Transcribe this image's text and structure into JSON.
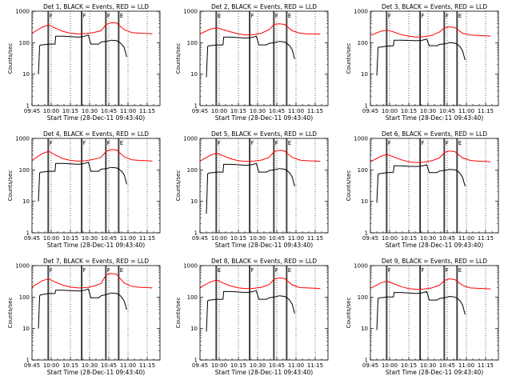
{
  "figure": {
    "xlabel": "Start Time (28-Dec-11 09:43:40)",
    "ylabel": "Counts/sec",
    "x_ticks": [
      "09:45",
      "10:00",
      "10:15",
      "10:30",
      "10:45",
      "11:00",
      "11:15"
    ],
    "y_ticks": [
      "1",
      "10",
      "100",
      "1000"
    ],
    "colors": {
      "events": "#000000",
      "lld": "#ff0000",
      "axes": "#000000"
    }
  },
  "chart_data": [
    {
      "type": "line",
      "title": "Det 1, BLACK = Events, RED = LLD",
      "x_units": "minutes after 09:45",
      "xlim": [
        0,
        100
      ],
      "ylim": [
        1,
        1000
      ],
      "y_scale": "log",
      "markers": [
        {
          "x": 13,
          "label": "F"
        },
        {
          "x": 39,
          "label": "F"
        },
        {
          "x": 58,
          "label": "F"
        },
        {
          "x": 68,
          "label": "E"
        }
      ],
      "series": [
        {
          "key": "lld",
          "x": [
            0,
            8,
            13,
            18,
            24,
            30,
            36,
            42,
            48,
            54,
            58,
            62,
            66,
            72,
            78,
            84,
            90,
            94
          ],
          "y": [
            200,
            310,
            370,
            290,
            230,
            200,
            190,
            195,
            210,
            240,
            380,
            430,
            420,
            260,
            210,
            200,
            195,
            190
          ]
        },
        {
          "key": "events",
          "x": [
            5,
            6,
            7,
            8,
            13,
            18,
            18.5,
            24,
            30,
            36,
            40,
            44,
            46,
            52,
            54,
            58,
            62,
            66,
            68,
            70,
            72,
            74
          ],
          "y": [
            10,
            80,
            85,
            85,
            90,
            90,
            160,
            160,
            155,
            150,
            155,
            175,
            90,
            90,
            105,
            110,
            120,
            115,
            105,
            90,
            70,
            35
          ]
        }
      ]
    },
    {
      "type": "line",
      "title": "Det 2, BLACK = Events, RED = LLD",
      "x_units": "minutes after 09:45",
      "xlim": [
        0,
        100
      ],
      "ylim": [
        1,
        1000
      ],
      "y_scale": "log",
      "markers": [
        {
          "x": 13,
          "label": "E"
        },
        {
          "x": 39,
          "label": "F"
        },
        {
          "x": 58,
          "label": "F"
        },
        {
          "x": 68,
          "label": "E"
        }
      ],
      "series": [
        {
          "key": "lld",
          "x": [
            0,
            8,
            13,
            18,
            24,
            30,
            36,
            42,
            48,
            54,
            58,
            62,
            66,
            72,
            78,
            84,
            90,
            94
          ],
          "y": [
            190,
            270,
            300,
            260,
            220,
            190,
            175,
            180,
            200,
            260,
            380,
            400,
            380,
            240,
            200,
            190,
            190,
            185
          ]
        },
        {
          "key": "events",
          "x": [
            5,
            6,
            7,
            8,
            13,
            18,
            18.5,
            24,
            30,
            36,
            40,
            44,
            46,
            52,
            54,
            58,
            62,
            66,
            68,
            70,
            72,
            74
          ],
          "y": [
            8,
            75,
            80,
            80,
            85,
            85,
            150,
            150,
            145,
            140,
            145,
            160,
            85,
            85,
            95,
            100,
            110,
            105,
            95,
            80,
            60,
            30
          ]
        }
      ]
    },
    {
      "type": "line",
      "title": "Det 3, BLACK = Events, RED = LLD",
      "x_units": "minutes after 09:45",
      "xlim": [
        0,
        100
      ],
      "ylim": [
        1,
        1000
      ],
      "y_scale": "log",
      "markers": [
        {
          "x": 13,
          "label": "F"
        },
        {
          "x": 39,
          "label": "F"
        },
        {
          "x": 58,
          "label": "F"
        },
        {
          "x": 68,
          "label": "E"
        }
      ],
      "series": [
        {
          "key": "lld",
          "x": [
            0,
            8,
            13,
            18,
            24,
            30,
            36,
            42,
            48,
            54,
            58,
            62,
            66,
            72,
            78,
            84,
            90,
            94
          ],
          "y": [
            170,
            230,
            250,
            220,
            180,
            160,
            150,
            155,
            170,
            220,
            300,
            320,
            300,
            200,
            175,
            170,
            165,
            160
          ]
        },
        {
          "key": "events",
          "x": [
            5,
            6,
            7,
            8,
            13,
            18,
            18.5,
            24,
            30,
            36,
            40,
            44,
            46,
            52,
            54,
            58,
            62,
            66,
            68,
            70,
            72,
            74
          ],
          "y": [
            9,
            70,
            72,
            72,
            78,
            80,
            120,
            120,
            118,
            115,
            118,
            130,
            80,
            80,
            88,
            92,
            100,
            96,
            88,
            75,
            55,
            28
          ]
        }
      ]
    },
    {
      "type": "line",
      "title": "Det 4, BLACK = Events, RED = LLD",
      "x_units": "minutes after 09:45",
      "xlim": [
        0,
        100
      ],
      "ylim": [
        1,
        1000
      ],
      "y_scale": "log",
      "markers": [
        {
          "x": 13,
          "label": "F"
        },
        {
          "x": 39,
          "label": "F"
        },
        {
          "x": 58,
          "label": "F"
        },
        {
          "x": 68,
          "label": "E"
        }
      ],
      "series": [
        {
          "key": "lld",
          "x": [
            0,
            8,
            13,
            18,
            24,
            30,
            36,
            42,
            48,
            54,
            58,
            62,
            66,
            72,
            78,
            84,
            90,
            94
          ],
          "y": [
            200,
            330,
            390,
            300,
            230,
            200,
            190,
            195,
            215,
            250,
            390,
            440,
            430,
            260,
            210,
            200,
            195,
            190
          ]
        },
        {
          "key": "events",
          "x": [
            5,
            6,
            7,
            8,
            13,
            18,
            18.5,
            24,
            30,
            36,
            40,
            44,
            46,
            52,
            54,
            58,
            62,
            66,
            68,
            70,
            72,
            74
          ],
          "y": [
            10,
            80,
            85,
            85,
            90,
            90,
            160,
            160,
            155,
            150,
            155,
            175,
            90,
            90,
            105,
            110,
            120,
            115,
            105,
            90,
            70,
            35
          ]
        }
      ]
    },
    {
      "type": "line",
      "title": "Det 5, BLACK = Events, RED = LLD",
      "x_units": "minutes after 09:45",
      "xlim": [
        0,
        100
      ],
      "ylim": [
        1,
        1000
      ],
      "y_scale": "log",
      "markers": [
        {
          "x": 13,
          "label": "F"
        },
        {
          "x": 39,
          "label": "F"
        },
        {
          "x": 58,
          "label": "F"
        },
        {
          "x": 68,
          "label": "E"
        }
      ],
      "series": [
        {
          "key": "lld",
          "x": [
            0,
            8,
            13,
            18,
            24,
            30,
            36,
            42,
            48,
            54,
            58,
            62,
            66,
            72,
            78,
            84,
            90,
            94
          ],
          "y": [
            190,
            290,
            340,
            280,
            225,
            195,
            185,
            190,
            205,
            250,
            380,
            420,
            400,
            250,
            205,
            195,
            190,
            185
          ]
        },
        {
          "key": "events",
          "x": [
            5,
            6,
            7,
            8,
            13,
            18,
            18.5,
            24,
            30,
            36,
            40,
            44,
            46,
            52,
            54,
            58,
            62,
            66,
            68,
            70,
            72,
            74
          ],
          "y": [
            4,
            75,
            80,
            80,
            85,
            85,
            150,
            150,
            145,
            140,
            145,
            160,
            85,
            85,
            95,
            100,
            110,
            105,
            95,
            80,
            60,
            30
          ]
        }
      ]
    },
    {
      "type": "line",
      "title": "Det 6, BLACK = Events, RED = LLD",
      "x_units": "minutes after 09:45",
      "xlim": [
        0,
        100
      ],
      "ylim": [
        1,
        1000
      ],
      "y_scale": "log",
      "markers": [
        {
          "x": 13,
          "label": "F"
        },
        {
          "x": 39,
          "label": "F"
        },
        {
          "x": 58,
          "label": "F"
        },
        {
          "x": 68,
          "label": "E"
        }
      ],
      "series": [
        {
          "key": "lld",
          "x": [
            0,
            8,
            13,
            18,
            24,
            30,
            36,
            42,
            48,
            54,
            58,
            62,
            66,
            72,
            78,
            84,
            90,
            94
          ],
          "y": [
            180,
            270,
            310,
            260,
            210,
            180,
            170,
            175,
            195,
            240,
            360,
            400,
            380,
            240,
            200,
            190,
            185,
            180
          ]
        },
        {
          "key": "events",
          "x": [
            5,
            6,
            7,
            8,
            13,
            18,
            18.5,
            24,
            30,
            36,
            40,
            44,
            46,
            52,
            54,
            58,
            62,
            66,
            68,
            70,
            72,
            74
          ],
          "y": [
            9,
            72,
            76,
            76,
            82,
            84,
            135,
            135,
            130,
            128,
            132,
            145,
            82,
            82,
            92,
            96,
            104,
            100,
            92,
            78,
            58,
            30
          ]
        }
      ]
    },
    {
      "type": "line",
      "title": "Det 7, BLACK = Events, RED = LLD",
      "x_units": "minutes after 09:45",
      "xlim": [
        0,
        100
      ],
      "ylim": [
        1,
        1000
      ],
      "y_scale": "log",
      "markers": [
        {
          "x": 13,
          "label": "F"
        },
        {
          "x": 39,
          "label": "F"
        },
        {
          "x": 58,
          "label": "F"
        },
        {
          "x": 68,
          "label": "E"
        }
      ],
      "series": [
        {
          "key": "lld",
          "x": [
            0,
            8,
            13,
            18,
            24,
            30,
            36,
            42,
            48,
            54,
            58,
            62,
            66,
            72,
            78,
            84,
            90,
            94
          ],
          "y": [
            210,
            330,
            380,
            300,
            240,
            210,
            195,
            200,
            220,
            270,
            520,
            560,
            530,
            280,
            220,
            205,
            200,
            195
          ]
        },
        {
          "key": "events",
          "x": [
            5,
            6,
            7,
            8,
            13,
            18,
            18.5,
            24,
            30,
            36,
            40,
            44,
            46,
            52,
            54,
            58,
            62,
            66,
            68,
            70,
            72,
            74
          ],
          "y": [
            10,
            110,
            120,
            120,
            130,
            130,
            165,
            165,
            160,
            155,
            160,
            180,
            95,
            95,
            110,
            120,
            135,
            130,
            120,
            100,
            75,
            40
          ]
        }
      ]
    },
    {
      "type": "line",
      "title": "Det 8, BLACK = Events, RED = LLD",
      "x_units": "minutes after 09:45",
      "xlim": [
        0,
        100
      ],
      "ylim": [
        1,
        1000
      ],
      "y_scale": "log",
      "markers": [
        {
          "x": 13,
          "label": "E"
        },
        {
          "x": 39,
          "label": "F"
        },
        {
          "x": 58,
          "label": "F"
        },
        {
          "x": 68,
          "label": "E"
        }
      ],
      "series": [
        {
          "key": "lld",
          "x": [
            0,
            8,
            13,
            18,
            24,
            30,
            36,
            42,
            48,
            54,
            58,
            62,
            66,
            72,
            78,
            84,
            90,
            94
          ],
          "y": [
            200,
            300,
            350,
            280,
            225,
            195,
            185,
            190,
            205,
            250,
            370,
            410,
            390,
            245,
            200,
            195,
            190,
            185
          ]
        },
        {
          "key": "events",
          "x": [
            5,
            6,
            7,
            8,
            13,
            18,
            18.5,
            24,
            30,
            36,
            40,
            44,
            46,
            52,
            54,
            58,
            62,
            66,
            68,
            70,
            72,
            74
          ],
          "y": [
            8,
            75,
            80,
            80,
            85,
            85,
            150,
            150,
            145,
            140,
            145,
            160,
            85,
            85,
            95,
            100,
            110,
            105,
            95,
            80,
            60,
            30
          ]
        }
      ]
    },
    {
      "type": "line",
      "title": "Det 9, BLACK = Events, RED = LLD",
      "x_units": "minutes after 09:45",
      "xlim": [
        0,
        100
      ],
      "ylim": [
        1,
        1000
      ],
      "y_scale": "log",
      "markers": [
        {
          "x": 13,
          "label": "F"
        },
        {
          "x": 39,
          "label": "F"
        },
        {
          "x": 58,
          "label": "F"
        },
        {
          "x": 68,
          "label": "E"
        }
      ],
      "series": [
        {
          "key": "lld",
          "x": [
            0,
            8,
            13,
            18,
            24,
            30,
            36,
            42,
            48,
            54,
            58,
            62,
            66,
            72,
            78,
            84,
            90,
            94
          ],
          "y": [
            190,
            280,
            320,
            270,
            215,
            185,
            175,
            180,
            195,
            240,
            340,
            380,
            360,
            235,
            195,
            190,
            185,
            180
          ]
        },
        {
          "key": "events",
          "x": [
            5,
            6,
            7,
            8,
            13,
            18,
            18.5,
            24,
            30,
            36,
            40,
            44,
            46,
            52,
            54,
            58,
            62,
            66,
            68,
            70,
            72,
            74
          ],
          "y": [
            9,
            90,
            95,
            95,
            100,
            100,
            140,
            140,
            135,
            130,
            135,
            150,
            80,
            80,
            90,
            95,
            105,
            100,
            90,
            76,
            56,
            28
          ]
        }
      ]
    }
  ]
}
